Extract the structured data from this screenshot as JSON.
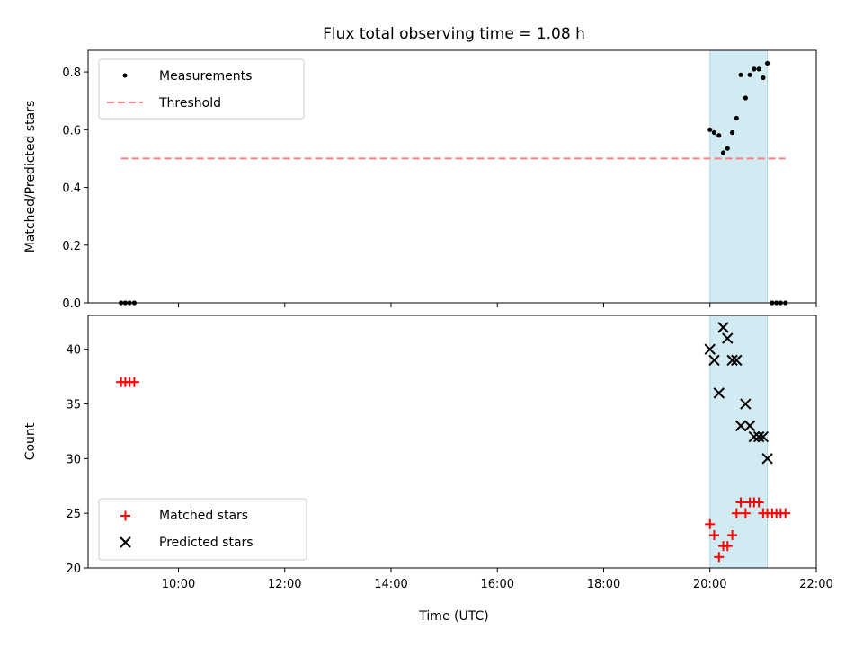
{
  "chart_data": {
    "title": "Flux total observing time = 1.08 h",
    "xlabel": "Time (UTC)",
    "xlim_hours": [
      8.3,
      22.0
    ],
    "x_ticks": [
      10,
      12,
      14,
      16,
      18,
      20,
      22
    ],
    "x_tick_labels": [
      "10:00",
      "12:00",
      "14:00",
      "16:00",
      "18:00",
      "20:00",
      "22:00"
    ],
    "observing_window_hours": [
      20.0,
      21.08
    ],
    "window_color": "#add8e6",
    "panels": [
      {
        "type": "scatter",
        "ylabel": "Matched/Predicted stars",
        "ylim": [
          0,
          0.875
        ],
        "y_ticks": [
          0.0,
          0.2,
          0.4,
          0.6,
          0.8
        ],
        "y_tick_labels": [
          "0.0",
          "0.2",
          "0.4",
          "0.6",
          "0.8"
        ],
        "legend": [
          {
            "label": "Measurements",
            "marker": "dot",
            "color": "#000000"
          },
          {
            "label": "Threshold",
            "marker": "dashed-line",
            "color": "#ff7f7f"
          }
        ],
        "series": [
          {
            "name": "Measurements",
            "color": "#000000",
            "x": [
              8.92,
              9.0,
              9.08,
              9.17,
              20.0,
              20.08,
              20.17,
              20.25,
              20.33,
              20.42,
              20.5,
              20.58,
              20.67,
              20.75,
              20.83,
              20.92,
              21.0,
              21.08,
              21.17,
              21.25,
              21.33,
              21.42
            ],
            "y": [
              0,
              0,
              0,
              0,
              0.6,
              0.59,
              0.58,
              0.52,
              0.535,
              0.59,
              0.64,
              0.79,
              0.71,
              0.79,
              0.81,
              0.81,
              0.78,
              0.83,
              0,
              0,
              0,
              0
            ]
          },
          {
            "name": "Threshold",
            "color": "#ff7f7f",
            "x": [
              8.92,
              21.42
            ],
            "y": [
              0.5,
              0.5
            ]
          }
        ]
      },
      {
        "type": "scatter",
        "ylabel": "Count",
        "ylim": [
          20,
          43.1
        ],
        "y_ticks": [
          20,
          25,
          30,
          35,
          40
        ],
        "y_tick_labels": [
          "20",
          "25",
          "30",
          "35",
          "40"
        ],
        "legend": [
          {
            "label": "Matched stars",
            "marker": "plus",
            "color": "#ff0000"
          },
          {
            "label": "Predicted stars",
            "marker": "x",
            "color": "#000000"
          }
        ],
        "series": [
          {
            "name": "Matched stars",
            "color": "#ff0000",
            "x": [
              8.92,
              9.0,
              9.08,
              9.17,
              20.0,
              20.08,
              20.17,
              20.25,
              20.33,
              20.42,
              20.5,
              20.58,
              20.67,
              20.75,
              20.83,
              20.92,
              21.0,
              21.08,
              21.17,
              21.25,
              21.33,
              21.42
            ],
            "y": [
              37,
              37,
              37,
              37,
              24,
              23,
              21,
              22,
              22,
              23,
              25,
              26,
              25,
              26,
              26,
              26,
              25,
              25,
              25,
              25,
              25,
              25
            ]
          },
          {
            "name": "Predicted stars",
            "color": "#000000",
            "x": [
              20.0,
              20.08,
              20.17,
              20.25,
              20.33,
              20.42,
              20.5,
              20.58,
              20.67,
              20.75,
              20.83,
              20.92,
              21.0,
              21.08
            ],
            "y": [
              40,
              39,
              36,
              42,
              41,
              39,
              39,
              33,
              35,
              33,
              32,
              32,
              32,
              30
            ]
          }
        ]
      }
    ]
  }
}
